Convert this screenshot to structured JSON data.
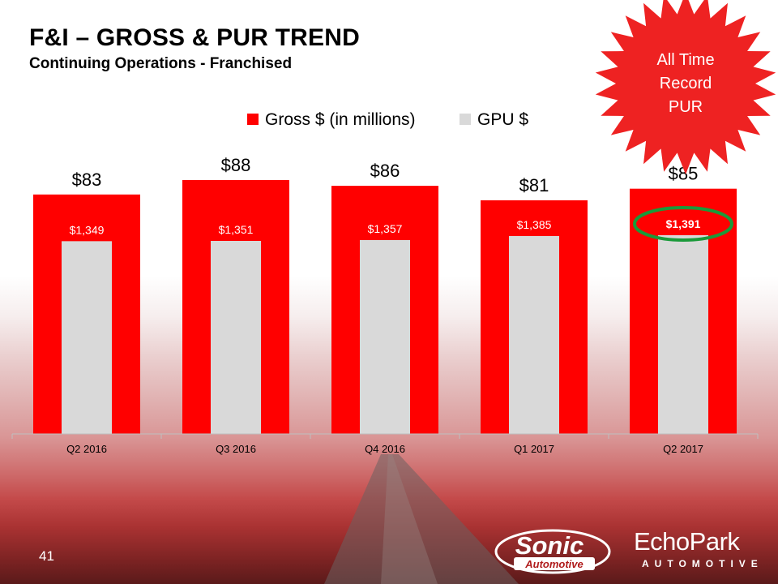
{
  "slide": {
    "title": "F&I – GROSS & PUR TREND",
    "subtitle": "Continuing Operations - Franchised",
    "page_number": "41",
    "callout": [
      "All Time",
      "Record",
      "PUR"
    ]
  },
  "logos": {
    "sonic": {
      "line1": "Sonic",
      "line2": "Automotive"
    },
    "echopark": {
      "line1": "EchoPark",
      "line2": "AUTOMOTIVE"
    }
  },
  "colors": {
    "gross": "#ff0000",
    "gpu": "#d9d9d9",
    "highlight_ellipse": "#1a9a3a",
    "callout": "#ee2222"
  },
  "chart_data": {
    "type": "bar",
    "categories": [
      "Q2 2016",
      "Q3 2016",
      "Q4 2016",
      "Q1 2017",
      "Q2 2017"
    ],
    "series": [
      {
        "name": "Gross $ (in millions)",
        "values": [
          83,
          88,
          86,
          81,
          85
        ],
        "labels": [
          "$83",
          "$88",
          "$86",
          "$81",
          "$85"
        ]
      },
      {
        "name": "GPU $",
        "values": [
          1349,
          1351,
          1357,
          1385,
          1391
        ],
        "labels": [
          "$1,349",
          "$1,351",
          "$1,357",
          "$1,385",
          "$1,391"
        ]
      }
    ],
    "highlight_index": 4,
    "legend_position": "top-center",
    "title": "",
    "xlabel": "",
    "ylabel": ""
  }
}
